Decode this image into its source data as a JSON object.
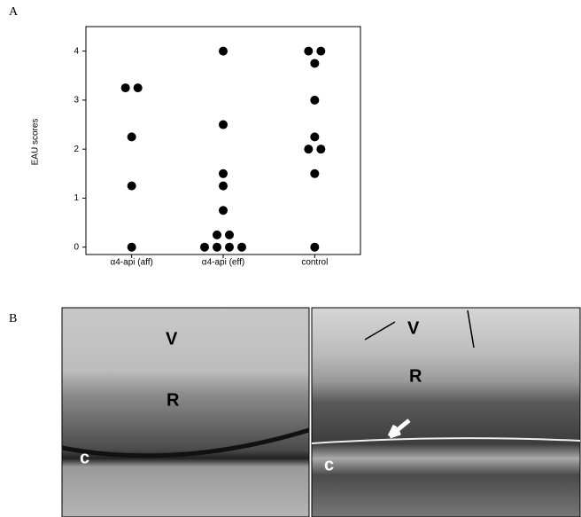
{
  "chart_data": {
    "type": "dotplot",
    "y_label": "EAU scores",
    "categories": [
      "α4-api (aff)",
      "α4-api (eff)",
      "control"
    ],
    "values": [
      [
        3.25,
        3.25,
        2.25,
        1.25,
        0
      ],
      [
        4,
        2.5,
        1.5,
        1.25,
        0.75,
        0.25,
        0.25,
        0,
        0,
        0,
        0
      ],
      [
        4,
        4,
        3.75,
        3,
        2.25,
        2,
        2,
        1.5,
        0
      ]
    ],
    "color": "#000000",
    "ylim": [
      -0.15,
      4.5
    ],
    "yticks": [
      0,
      1,
      2,
      3,
      4
    ]
  },
  "figure": {
    "panel_a_label": "A",
    "panel_b_label": "B",
    "left_image_labels": [
      "V",
      "R",
      "c"
    ],
    "right_image_labels": [
      "V",
      "R",
      "c"
    ]
  }
}
